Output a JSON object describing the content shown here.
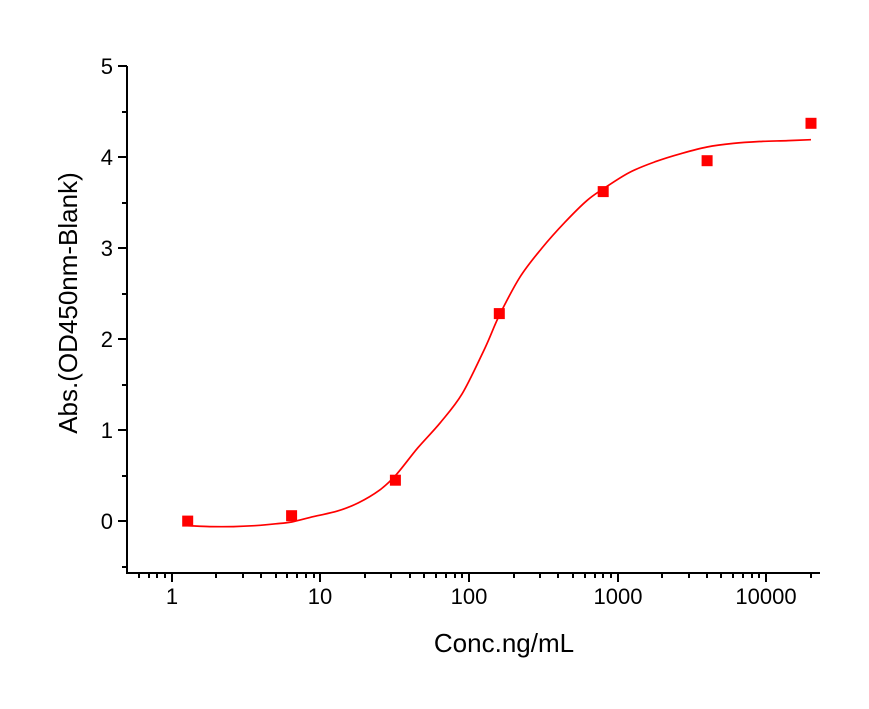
{
  "page": {
    "background": "#ffffff"
  },
  "chart_data": {
    "type": "scatter",
    "title": "",
    "xlabel": "Conc.ng/mL",
    "ylabel": "Abs.(OD450nm-Blank)",
    "x_scale": "log",
    "y_scale": "linear",
    "xlim": [
      0.5,
      23000
    ],
    "ylim": [
      -0.57,
      5
    ],
    "grid": false,
    "legend": "none",
    "axis_color": "#000000",
    "x_major_ticks": [
      1,
      10,
      100,
      1000,
      10000
    ],
    "x_tick_labels": [
      "1",
      "10",
      "100",
      "1000",
      "10000"
    ],
    "y_major_ticks": [
      0,
      1,
      2,
      3,
      4,
      5
    ],
    "y_tick_labels": [
      "0",
      "1",
      "2",
      "3",
      "4",
      "5"
    ],
    "y_minor_ticks": [
      -0.5,
      0.5,
      1.5,
      2.5,
      3.5,
      4.5
    ],
    "series": [
      {
        "name": "4PL fit curve",
        "type": "line",
        "color": "#ff0000",
        "line_width": 1.7,
        "points": [
          [
            1.28,
            -0.05
          ],
          [
            1.8,
            -0.06
          ],
          [
            2.6,
            -0.06
          ],
          [
            3.6,
            -0.05
          ],
          [
            5,
            -0.03
          ],
          [
            6.4,
            -0.01
          ],
          [
            9,
            0.05
          ],
          [
            13,
            0.11
          ],
          [
            18,
            0.2
          ],
          [
            25,
            0.34
          ],
          [
            32,
            0.5
          ],
          [
            45,
            0.8
          ],
          [
            64,
            1.08
          ],
          [
            90,
            1.4
          ],
          [
            128,
            1.9
          ],
          [
            160,
            2.26
          ],
          [
            220,
            2.68
          ],
          [
            310,
            3.0
          ],
          [
            440,
            3.28
          ],
          [
            620,
            3.52
          ],
          [
            800,
            3.65
          ],
          [
            1200,
            3.83
          ],
          [
            1800,
            3.95
          ],
          [
            2700,
            4.04
          ],
          [
            4000,
            4.11
          ],
          [
            6000,
            4.15
          ],
          [
            9000,
            4.17
          ],
          [
            14000,
            4.18
          ],
          [
            20000,
            4.19
          ]
        ]
      },
      {
        "name": "ELISA data points",
        "type": "scatter",
        "marker": "square",
        "marker_size": 11,
        "color": "#ff0000",
        "points": [
          [
            1.28,
            0.0
          ],
          [
            6.4,
            0.06
          ],
          [
            32,
            0.45
          ],
          [
            160,
            2.28
          ],
          [
            800,
            3.62
          ],
          [
            4000,
            3.96
          ],
          [
            20000,
            4.37
          ]
        ]
      }
    ]
  }
}
